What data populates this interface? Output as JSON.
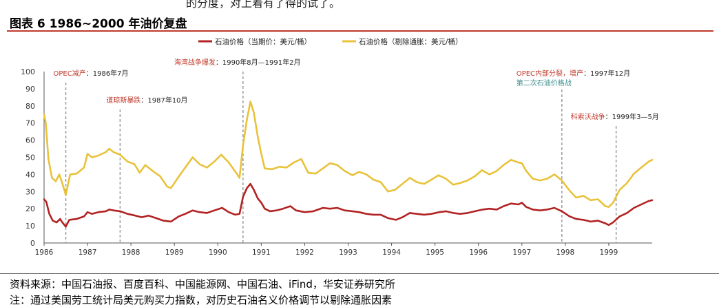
{
  "page": {
    "top_fragment": "的分度，对上着有了得的试了。",
    "figure_title": "图表 6  1986~2000 年油价复盘",
    "source_note": "资料来源：中国石油报、百度百科、中国能源网、中国石油、iFind，华安证券研究所",
    "adjust_note": "注：通过美国劳工统计局美元购买力指数，对历史石油名义价格调节以剔除通胀因素"
  },
  "colors": {
    "nominal": "#b22222",
    "real": "#e8c23a",
    "event_line": "#9a9a9a",
    "annotation_red": "#c0392b",
    "annotation_teal": "#3a8a8a",
    "axis_text": "#333333"
  },
  "chart_data": {
    "type": "line",
    "title": "",
    "xlabel": "",
    "ylabel": "",
    "x_range": [
      1986.0,
      2000.0
    ],
    "ylim": [
      0,
      100
    ],
    "yticks": [
      0,
      10,
      20,
      30,
      40,
      50,
      60,
      70,
      80,
      90,
      100
    ],
    "xticks": [
      "1986",
      "1987",
      "1988",
      "1989",
      "1990",
      "1991",
      "1992",
      "1993",
      "1994",
      "1995",
      "1996",
      "1997",
      "1998",
      "1999"
    ],
    "grid": false,
    "legend": "top-center",
    "series": [
      {
        "name": "石油价格（当期价：美元/桶）",
        "color": "#b22222",
        "points": [
          [
            1986.0,
            25.5
          ],
          [
            1986.05,
            24
          ],
          [
            1986.12,
            17
          ],
          [
            1986.2,
            13
          ],
          [
            1986.29,
            12
          ],
          [
            1986.37,
            14
          ],
          [
            1986.42,
            12
          ],
          [
            1986.5,
            9.5
          ],
          [
            1986.58,
            13.5
          ],
          [
            1986.75,
            14
          ],
          [
            1986.92,
            15.5
          ],
          [
            1987.0,
            18
          ],
          [
            1987.1,
            17
          ],
          [
            1987.25,
            18
          ],
          [
            1987.42,
            18.5
          ],
          [
            1987.5,
            19.5
          ],
          [
            1987.6,
            19
          ],
          [
            1987.75,
            18.5
          ],
          [
            1987.92,
            17
          ],
          [
            1988.1,
            16
          ],
          [
            1988.25,
            15
          ],
          [
            1988.4,
            16
          ],
          [
            1988.58,
            14.5
          ],
          [
            1988.75,
            13
          ],
          [
            1988.92,
            12.5
          ],
          [
            1989.1,
            15.5
          ],
          [
            1989.25,
            17
          ],
          [
            1989.42,
            19
          ],
          [
            1989.58,
            18
          ],
          [
            1989.75,
            17.5
          ],
          [
            1989.92,
            19
          ],
          [
            1990.1,
            20.5
          ],
          [
            1990.25,
            18
          ],
          [
            1990.4,
            16.5
          ],
          [
            1990.5,
            17
          ],
          [
            1990.58,
            27
          ],
          [
            1990.67,
            32
          ],
          [
            1990.75,
            34.5
          ],
          [
            1990.83,
            31
          ],
          [
            1990.92,
            26
          ],
          [
            1991.0,
            23.5
          ],
          [
            1991.08,
            20
          ],
          [
            1991.2,
            18.5
          ],
          [
            1991.35,
            19
          ],
          [
            1991.5,
            20
          ],
          [
            1991.67,
            21.5
          ],
          [
            1991.8,
            19
          ],
          [
            1992.0,
            18
          ],
          [
            1992.2,
            18.5
          ],
          [
            1992.42,
            20.5
          ],
          [
            1992.58,
            20
          ],
          [
            1992.75,
            20.5
          ],
          [
            1992.92,
            19
          ],
          [
            1993.1,
            18.5
          ],
          [
            1993.25,
            18
          ],
          [
            1993.42,
            17
          ],
          [
            1993.58,
            16.5
          ],
          [
            1993.75,
            16.5
          ],
          [
            1993.92,
            14.5
          ],
          [
            1994.1,
            13.5
          ],
          [
            1994.25,
            15
          ],
          [
            1994.42,
            17.5
          ],
          [
            1994.58,
            17
          ],
          [
            1994.75,
            16.5
          ],
          [
            1994.92,
            17
          ],
          [
            1995.1,
            18
          ],
          [
            1995.25,
            18.5
          ],
          [
            1995.42,
            17.5
          ],
          [
            1995.58,
            17
          ],
          [
            1995.75,
            17.5
          ],
          [
            1995.92,
            18.5
          ],
          [
            1996.1,
            19.5
          ],
          [
            1996.25,
            20
          ],
          [
            1996.42,
            19.5
          ],
          [
            1996.58,
            21.5
          ],
          [
            1996.75,
            23
          ],
          [
            1996.92,
            22.5
          ],
          [
            1997.0,
            23.5
          ],
          [
            1997.1,
            21
          ],
          [
            1997.25,
            19.5
          ],
          [
            1997.42,
            19
          ],
          [
            1997.58,
            19.5
          ],
          [
            1997.75,
            20.5
          ],
          [
            1997.92,
            18.5
          ],
          [
            1998.1,
            15.5
          ],
          [
            1998.25,
            14
          ],
          [
            1998.42,
            13.5
          ],
          [
            1998.58,
            12.5
          ],
          [
            1998.75,
            13
          ],
          [
            1998.92,
            11.5
          ],
          [
            1999.0,
            10.5
          ],
          [
            1999.1,
            12
          ],
          [
            1999.25,
            15.5
          ],
          [
            1999.42,
            17.5
          ],
          [
            1999.58,
            20.5
          ],
          [
            1999.75,
            22.5
          ],
          [
            1999.92,
            24.5
          ],
          [
            2000.0,
            25
          ]
        ]
      },
      {
        "name": "石油价格（剔除通胀：美元/桶）",
        "color": "#e8c23a",
        "points": [
          [
            1986.0,
            75
          ],
          [
            1986.04,
            70
          ],
          [
            1986.1,
            49
          ],
          [
            1986.18,
            38
          ],
          [
            1986.27,
            36
          ],
          [
            1986.35,
            40
          ],
          [
            1986.43,
            34
          ],
          [
            1986.5,
            28
          ],
          [
            1986.6,
            40
          ],
          [
            1986.75,
            40.5
          ],
          [
            1986.92,
            44
          ],
          [
            1987.0,
            52
          ],
          [
            1987.1,
            50
          ],
          [
            1987.25,
            51
          ],
          [
            1987.42,
            53
          ],
          [
            1987.5,
            55
          ],
          [
            1987.6,
            53
          ],
          [
            1987.75,
            51.5
          ],
          [
            1987.92,
            47.5
          ],
          [
            1988.08,
            46
          ],
          [
            1988.2,
            41
          ],
          [
            1988.33,
            45.5
          ],
          [
            1988.5,
            42
          ],
          [
            1988.67,
            39
          ],
          [
            1988.83,
            33
          ],
          [
            1988.92,
            32
          ],
          [
            1989.08,
            38
          ],
          [
            1989.25,
            44
          ],
          [
            1989.42,
            50
          ],
          [
            1989.58,
            46
          ],
          [
            1989.75,
            44
          ],
          [
            1989.92,
            47.5
          ],
          [
            1990.08,
            51.5
          ],
          [
            1990.25,
            47
          ],
          [
            1990.42,
            41
          ],
          [
            1990.5,
            38
          ],
          [
            1990.58,
            57
          ],
          [
            1990.67,
            72
          ],
          [
            1990.75,
            82.5
          ],
          [
            1990.83,
            76
          ],
          [
            1990.92,
            62
          ],
          [
            1991.0,
            52
          ],
          [
            1991.08,
            43.5
          ],
          [
            1991.25,
            43
          ],
          [
            1991.42,
            44.5
          ],
          [
            1991.58,
            44
          ],
          [
            1991.75,
            47
          ],
          [
            1991.92,
            49
          ],
          [
            1992.08,
            41
          ],
          [
            1992.25,
            40.5
          ],
          [
            1992.42,
            43.5
          ],
          [
            1992.58,
            46.5
          ],
          [
            1992.75,
            45.5
          ],
          [
            1992.92,
            42
          ],
          [
            1993.1,
            39.5
          ],
          [
            1993.25,
            41.5
          ],
          [
            1993.42,
            40
          ],
          [
            1993.58,
            37
          ],
          [
            1993.75,
            35.5
          ],
          [
            1993.92,
            30
          ],
          [
            1994.08,
            31
          ],
          [
            1994.25,
            34.5
          ],
          [
            1994.42,
            38
          ],
          [
            1994.58,
            35.5
          ],
          [
            1994.75,
            34.5
          ],
          [
            1994.92,
            37
          ],
          [
            1995.08,
            39.5
          ],
          [
            1995.25,
            37.5
          ],
          [
            1995.42,
            34
          ],
          [
            1995.58,
            35
          ],
          [
            1995.75,
            36.5
          ],
          [
            1995.92,
            39
          ],
          [
            1996.08,
            42.5
          ],
          [
            1996.25,
            40
          ],
          [
            1996.42,
            42
          ],
          [
            1996.58,
            45.5
          ],
          [
            1996.75,
            48.5
          ],
          [
            1996.92,
            47
          ],
          [
            1997.0,
            46.5
          ],
          [
            1997.1,
            42
          ],
          [
            1997.25,
            37.5
          ],
          [
            1997.42,
            36.5
          ],
          [
            1997.58,
            37.5
          ],
          [
            1997.75,
            40
          ],
          [
            1997.92,
            36.5
          ],
          [
            1998.1,
            30.5
          ],
          [
            1998.25,
            26.5
          ],
          [
            1998.42,
            27.5
          ],
          [
            1998.58,
            25
          ],
          [
            1998.75,
            25.5
          ],
          [
            1998.92,
            21.5
          ],
          [
            1999.0,
            21
          ],
          [
            1999.1,
            23.5
          ],
          [
            1999.25,
            31
          ],
          [
            1999.42,
            35
          ],
          [
            1999.58,
            40.5
          ],
          [
            1999.75,
            44
          ],
          [
            1999.92,
            47.5
          ],
          [
            2000.0,
            48.5
          ]
        ]
      }
    ],
    "events": [
      {
        "x": 1986.5,
        "label": "OPEC减产",
        "date": "：1986年7月",
        "label_color": "#c0392b",
        "level": 1
      },
      {
        "x": 1987.75,
        "label": "道琼斯暴跌",
        "date": "：1987年10月",
        "label_color": "#c0392b",
        "level": 2
      },
      {
        "x": 1990.58,
        "label": "海湾战争爆发",
        "date": "：1990年8月—1991年2月",
        "label_color": "#c0392b",
        "level": 0
      },
      {
        "x": 1997.92,
        "label": "OPEC内部分裂，增产",
        "date": "：1997年12月",
        "label_color": "#c0392b",
        "level": 1,
        "sub_label": "第二次石油价格战",
        "sub_color": "#3a8a8a"
      },
      {
        "x": 1999.17,
        "label": "科索沃战争",
        "date": "：1999年3—5月",
        "label_color": "#c0392b",
        "level": 3
      }
    ]
  }
}
